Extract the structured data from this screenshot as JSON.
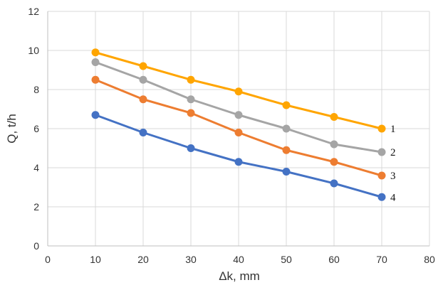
{
  "chart_data": {
    "type": "line",
    "xlabel": "Δk, mm",
    "ylabel": "Q, t/h",
    "xlim": [
      0,
      80
    ],
    "ylim": [
      0,
      12
    ],
    "xticks": [
      "0",
      "10",
      "20",
      "30",
      "40",
      "50",
      "60",
      "70",
      "80"
    ],
    "yticks": [
      "0",
      "2",
      "4",
      "6",
      "8",
      "10",
      "12"
    ],
    "grid": true,
    "x": [
      10,
      20,
      30,
      40,
      50,
      60,
      70
    ],
    "series": [
      {
        "name": "1",
        "color": "#FFA500",
        "values": [
          9.9,
          9.2,
          8.5,
          7.9,
          7.2,
          6.6,
          6.0
        ]
      },
      {
        "name": "2",
        "color": "#A5A5A5",
        "values": [
          9.4,
          8.5,
          7.5,
          6.7,
          6.0,
          5.2,
          4.8
        ]
      },
      {
        "name": "3",
        "color": "#ED7D31",
        "values": [
          8.5,
          7.5,
          6.8,
          5.8,
          4.9,
          4.3,
          3.6
        ]
      },
      {
        "name": "4",
        "color": "#4472C4",
        "values": [
          6.7,
          5.8,
          5.0,
          4.3,
          3.8,
          3.2,
          2.5
        ]
      }
    ]
  }
}
